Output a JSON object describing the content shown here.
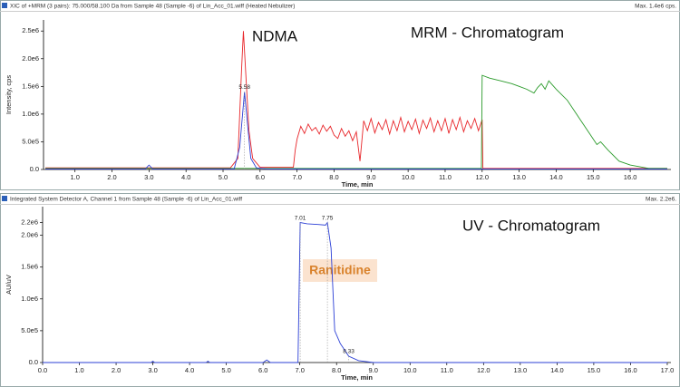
{
  "chart_data": [
    {
      "type": "line",
      "title": "XIC of +MRM (3 pairs): 75.000/58.100 Da  from Sample 48 (Sample -6) of Lin_Acc_01.wiff (Heated Nebulizer)",
      "max_label": "Max. 1.4e6 cps.",
      "annotations": [
        "NDMA",
        "MRM  - Chromatogram"
      ],
      "x_label": "Time, min",
      "y_label": "Intensity, cps",
      "xlim": [
        0.15,
        17.1
      ],
      "ylim": [
        0,
        2700000
      ],
      "xticks": [
        {
          "value": 1,
          "label": "1.0"
        },
        {
          "value": 2,
          "label": "2.0"
        },
        {
          "value": 3,
          "label": "3.0"
        },
        {
          "value": 4,
          "label": "4.0"
        },
        {
          "value": 5,
          "label": "5.0"
        },
        {
          "value": 6,
          "label": "6.0"
        },
        {
          "value": 7,
          "label": "7.0"
        },
        {
          "value": 8,
          "label": "8.0"
        },
        {
          "value": 9,
          "label": "9.0"
        },
        {
          "value": 10,
          "label": "10.0"
        },
        {
          "value": 11,
          "label": "11.0"
        },
        {
          "value": 12,
          "label": "12.0"
        },
        {
          "value": 13,
          "label": "13.0"
        },
        {
          "value": 14,
          "label": "14.0"
        },
        {
          "value": 15,
          "label": "15.0"
        },
        {
          "value": 16,
          "label": "16.0"
        }
      ],
      "yticks": [
        {
          "value": 0,
          "label": "0.0"
        },
        {
          "value": 500000,
          "label": "5.0e5"
        },
        {
          "value": 1000000,
          "label": "1.0e6"
        },
        {
          "value": 1500000,
          "label": "1.5e6"
        },
        {
          "value": 2000000,
          "label": "2.0e6"
        },
        {
          "value": 2500000,
          "label": "2.5e6"
        }
      ],
      "series": [
        {
          "color": "#e8262a",
          "x": [
            0.2,
            5.2,
            5.4,
            5.5,
            5.55,
            5.6,
            5.7,
            5.8,
            6.0,
            6.9,
            6.95,
            7.0,
            7.1,
            7.2,
            7.3,
            7.4,
            7.5,
            7.6,
            7.7,
            7.8,
            7.9,
            8.0,
            8.1,
            8.2,
            8.3,
            8.4,
            8.5,
            8.6,
            8.7,
            8.8,
            8.9,
            9.0,
            9.1,
            9.2,
            9.3,
            9.4,
            9.5,
            9.6,
            9.7,
            9.8,
            9.9,
            10.0,
            10.1,
            10.2,
            10.3,
            10.4,
            10.5,
            10.6,
            10.7,
            10.8,
            10.9,
            11.0,
            11.1,
            11.2,
            11.3,
            11.4,
            11.5,
            11.6,
            11.7,
            11.8,
            11.9,
            12.0,
            12.02,
            17.0
          ],
          "values": [
            30000,
            30000,
            200000,
            1800000,
            2500000,
            1900000,
            700000,
            200000,
            40000,
            40000,
            350000,
            550000,
            780000,
            650000,
            820000,
            700000,
            760000,
            640000,
            800000,
            690000,
            780000,
            620000,
            560000,
            740000,
            600000,
            700000,
            520000,
            680000,
            150000,
            880000,
            700000,
            920000,
            660000,
            850000,
            720000,
            900000,
            640000,
            880000,
            700000,
            940000,
            680000,
            870000,
            720000,
            910000,
            650000,
            890000,
            740000,
            930000,
            680000,
            880000,
            700000,
            920000,
            650000,
            900000,
            720000,
            940000,
            680000,
            880000,
            740000,
            920000,
            700000,
            900000,
            20000,
            20000
          ]
        },
        {
          "color": "#2a9a2a",
          "x": [
            0.2,
            11.98,
            12.0,
            12.2,
            12.5,
            12.8,
            13.0,
            13.2,
            13.4,
            13.5,
            13.6,
            13.7,
            13.8,
            14.0,
            14.3,
            14.6,
            14.9,
            15.1,
            15.2,
            15.4,
            15.7,
            16.0,
            16.5,
            17.0
          ],
          "values": [
            20000,
            20000,
            1700000,
            1650000,
            1600000,
            1550000,
            1500000,
            1450000,
            1380000,
            1480000,
            1550000,
            1450000,
            1600000,
            1450000,
            1250000,
            950000,
            650000,
            450000,
            500000,
            350000,
            150000,
            80000,
            20000,
            20000
          ]
        },
        {
          "color": "#2b3fd6",
          "x": [
            0.2,
            2.9,
            3.0,
            3.1,
            5.3,
            5.45,
            5.58,
            5.65,
            5.75,
            5.9,
            6.2,
            17.0
          ],
          "values": [
            10000,
            10000,
            80000,
            10000,
            10000,
            400000,
            1400000,
            900000,
            200000,
            30000,
            10000,
            10000
          ],
          "peak_labels": [
            5.58
          ]
        }
      ]
    },
    {
      "type": "line",
      "title": "Integrated System Detector A, Channel 1 from Sample 48 (Sample -6) of Lin_Acc_01.wiff",
      "max_label": "Max. 2.2e6.",
      "annotations": [
        "UV  - Chromatogram",
        "Ranitidine"
      ],
      "x_label": "Time, min",
      "y_label": "AU/uV",
      "xlim": [
        0,
        17.1
      ],
      "ylim": [
        0,
        2450000
      ],
      "xticks": [
        {
          "value": 0,
          "label": "0.0"
        },
        {
          "value": 1,
          "label": "1.0"
        },
        {
          "value": 2,
          "label": "2.0"
        },
        {
          "value": 3,
          "label": "3.0"
        },
        {
          "value": 4,
          "label": "4.0"
        },
        {
          "value": 5,
          "label": "5.0"
        },
        {
          "value": 6,
          "label": "6.0"
        },
        {
          "value": 7,
          "label": "7.0"
        },
        {
          "value": 8,
          "label": "8.0"
        },
        {
          "value": 9,
          "label": "9.0"
        },
        {
          "value": 10,
          "label": "10.0"
        },
        {
          "value": 11,
          "label": "11.0"
        },
        {
          "value": 12,
          "label": "12.0"
        },
        {
          "value": 13,
          "label": "13.0"
        },
        {
          "value": 14,
          "label": "14.0"
        },
        {
          "value": 15,
          "label": "15.0"
        },
        {
          "value": 16,
          "label": "16.0"
        },
        {
          "value": 17,
          "label": "17.0"
        }
      ],
      "yticks": [
        {
          "value": 0,
          "label": "0.0"
        },
        {
          "value": 500000,
          "label": "5.0e5"
        },
        {
          "value": 1000000,
          "label": "1.0e6"
        },
        {
          "value": 1500000,
          "label": "1.5e6"
        },
        {
          "value": 2000000,
          "label": "2.0e6"
        },
        {
          "value": 2200000,
          "label": "2.2e6"
        }
      ],
      "series": [
        {
          "color": "#2b3fd6",
          "x": [
            0.0,
            2.95,
            3.0,
            3.05,
            4.45,
            4.5,
            4.55,
            6.0,
            6.1,
            6.2,
            6.95,
            7.01,
            7.2,
            7.5,
            7.7,
            7.75,
            7.85,
            7.95,
            8.1,
            8.33,
            8.6,
            9.0,
            17.0
          ],
          "values": [
            0,
            0,
            20000,
            0,
            0,
            20000,
            0,
            0,
            40000,
            0,
            0,
            2200000,
            2180000,
            2170000,
            2160000,
            2200000,
            1800000,
            500000,
            300000,
            100000,
            30000,
            0,
            0
          ],
          "peak_labels": [
            7.01,
            7.75,
            8.33
          ]
        }
      ]
    }
  ]
}
